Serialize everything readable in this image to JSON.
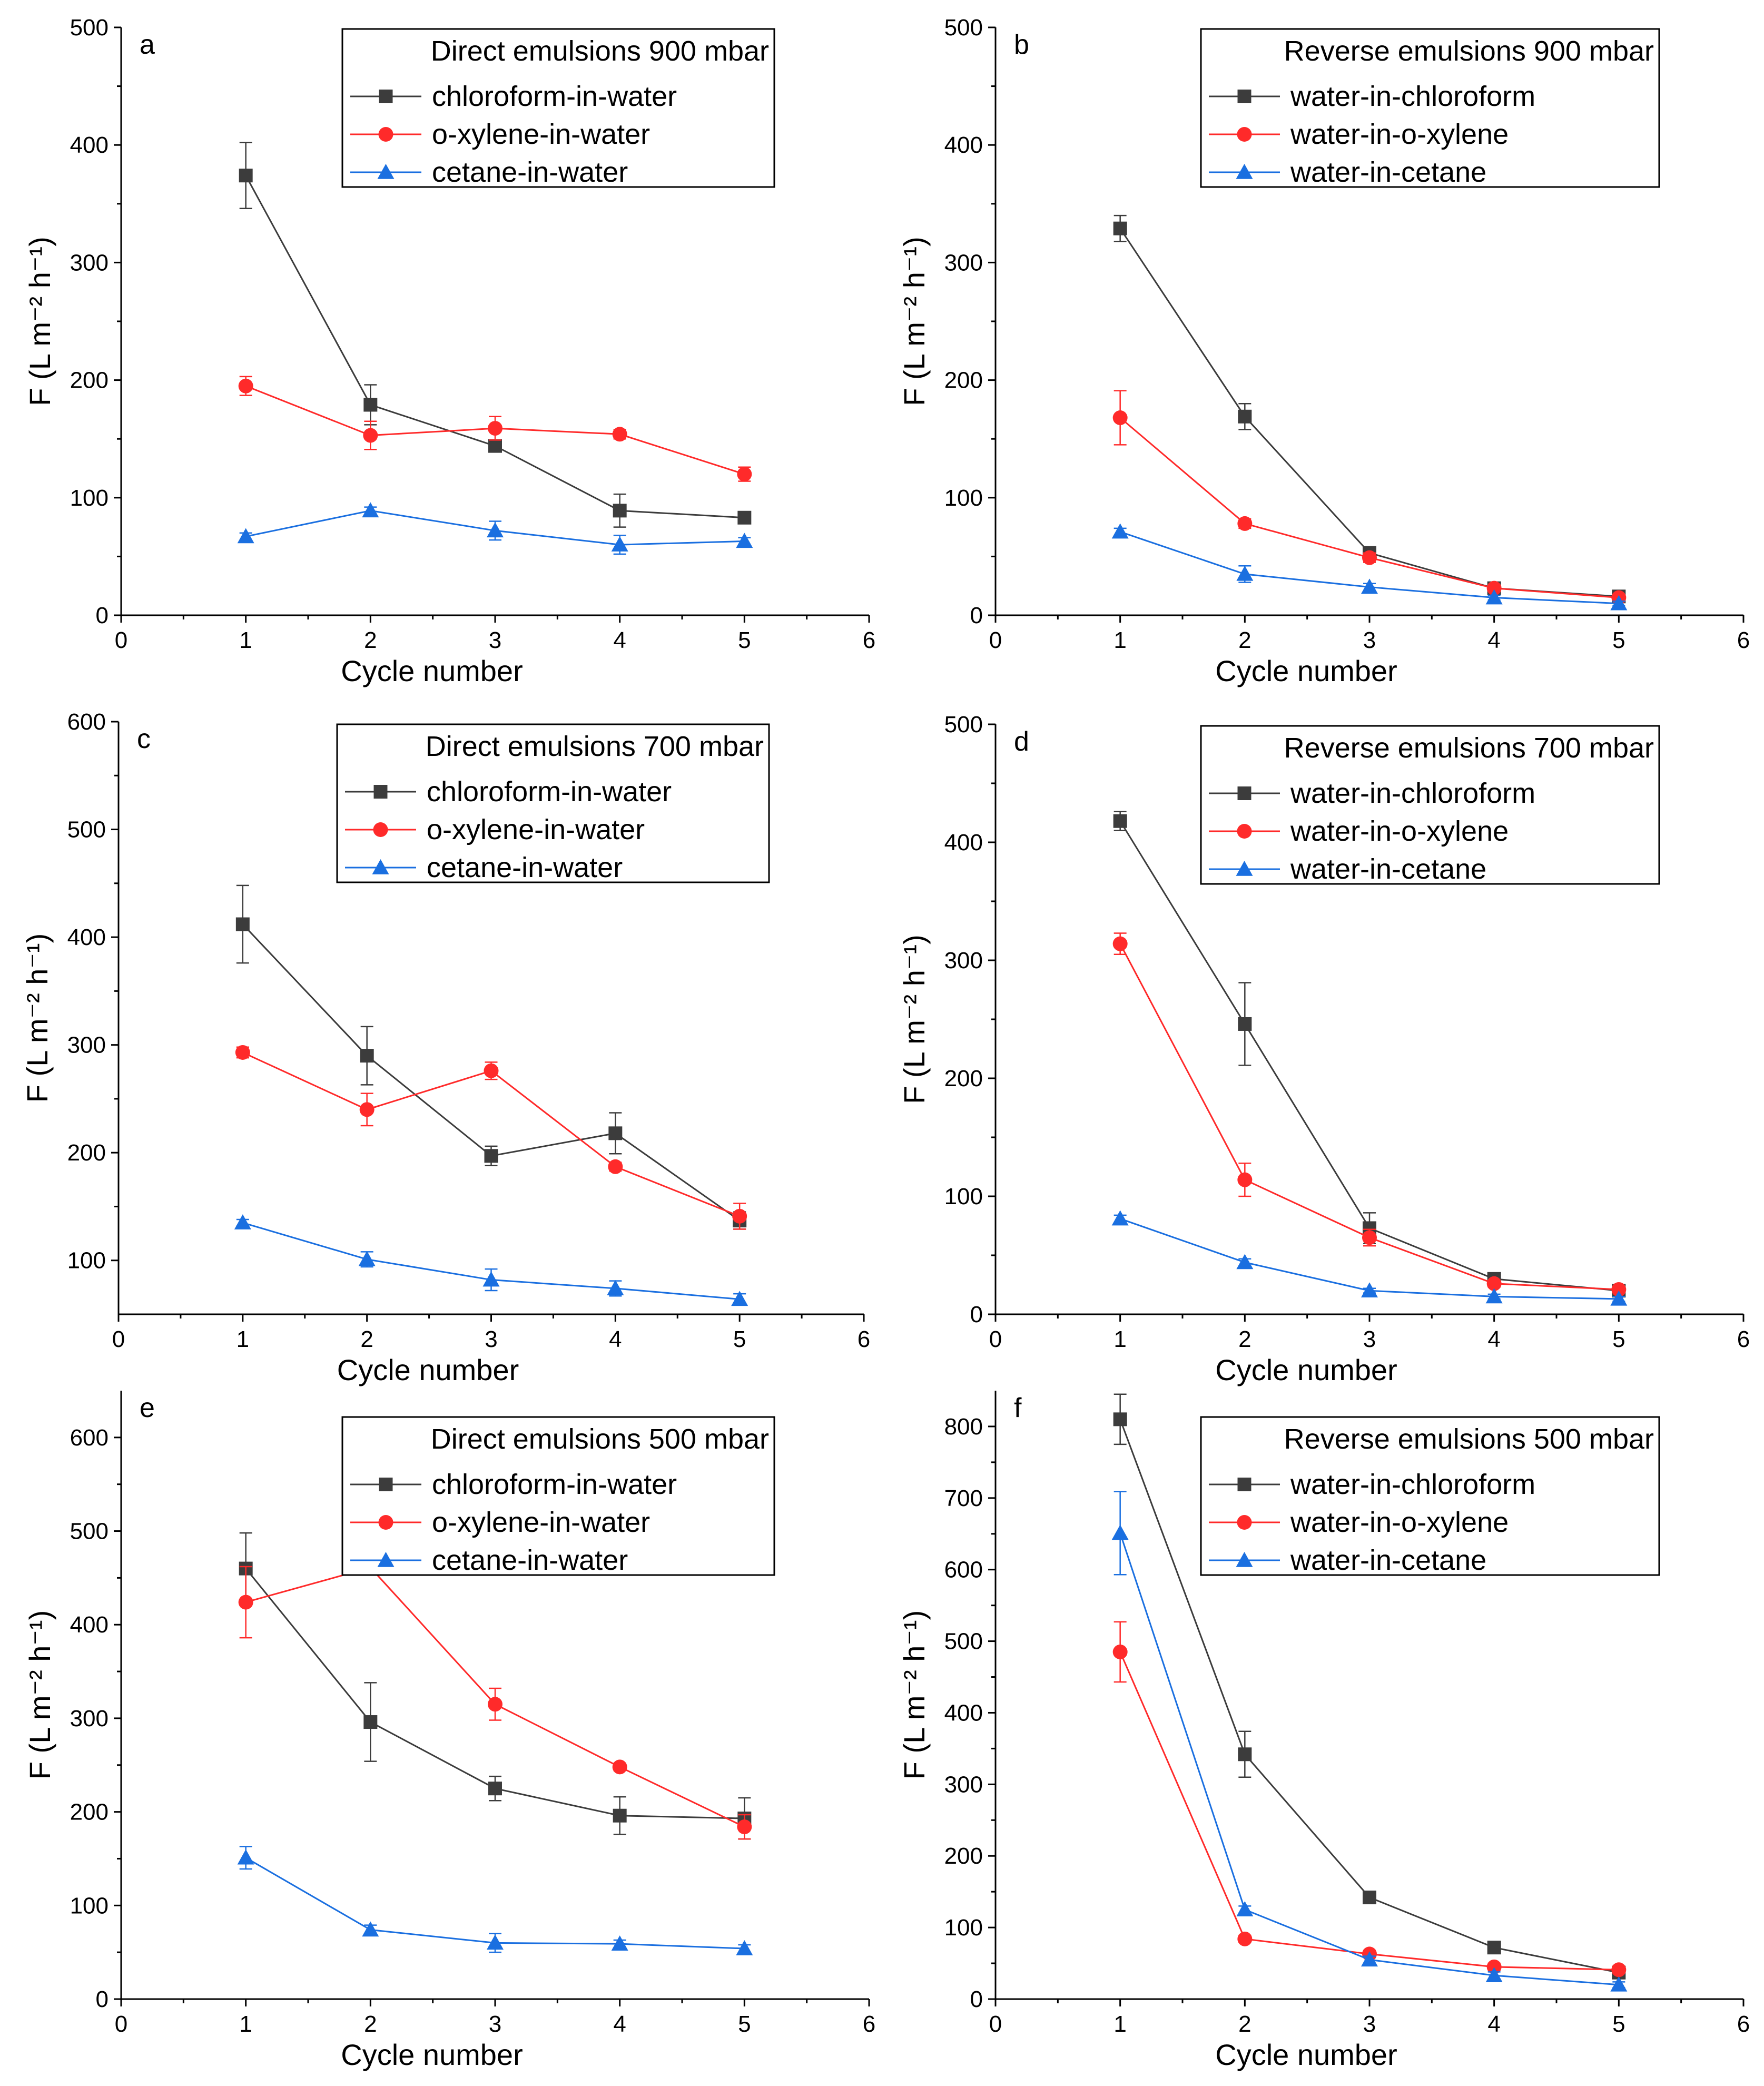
{
  "colors": {
    "chloroform": "#3c3c3c",
    "xylene": "#ff2a2a",
    "cetane": "#1a6fe0"
  },
  "chart_data": [
    {
      "type": "line",
      "panel": "a",
      "legend_title": "Direct emulsions 900 mbar",
      "xlabel": "Cycle number",
      "ylabel": "F (L m⁻² h⁻¹)",
      "xlim": [
        0,
        6
      ],
      "ylim": [
        0,
        500
      ],
      "xticks": [
        0,
        1,
        2,
        3,
        4,
        5,
        6
      ],
      "yticks": [
        0,
        100,
        200,
        300,
        400,
        500
      ],
      "x": [
        1,
        2,
        3,
        4,
        5
      ],
      "series": [
        {
          "name": "chloroform-in-water",
          "marker": "square",
          "color": "#3c3c3c",
          "values": [
            374,
            179,
            144,
            89,
            83
          ],
          "errors": [
            28,
            17,
            5,
            14,
            5
          ]
        },
        {
          "name": "o-xylene-in-water",
          "marker": "circle",
          "color": "#ff2a2a",
          "values": [
            195,
            153,
            159,
            154,
            120
          ],
          "errors": [
            8,
            12,
            10,
            4,
            6
          ]
        },
        {
          "name": "cetane-in-water",
          "marker": "triangle",
          "color": "#1a6fe0",
          "values": [
            67,
            89,
            72,
            60,
            63
          ],
          "errors": [
            3,
            3,
            8,
            8,
            3
          ]
        }
      ]
    },
    {
      "type": "line",
      "panel": "b",
      "legend_title": "Reverse emulsions 900 mbar",
      "xlabel": "Cycle number",
      "ylabel": "F (L m⁻² h⁻¹)",
      "xlim": [
        0,
        6
      ],
      "ylim": [
        0,
        500
      ],
      "xticks": [
        0,
        1,
        2,
        3,
        4,
        5,
        6
      ],
      "yticks": [
        0,
        100,
        200,
        300,
        400,
        500
      ],
      "x": [
        1,
        2,
        3,
        4,
        5
      ],
      "series": [
        {
          "name": "water-in-chloroform",
          "marker": "square",
          "color": "#3c3c3c",
          "values": [
            329,
            169,
            53,
            23,
            16
          ],
          "errors": [
            11,
            11,
            3,
            2,
            2
          ]
        },
        {
          "name": "water-in-o-xylene",
          "marker": "circle",
          "color": "#ff2a2a",
          "values": [
            168,
            78,
            49,
            23,
            15
          ],
          "errors": [
            23,
            4,
            4,
            2,
            2
          ]
        },
        {
          "name": "water-in-cetane",
          "marker": "triangle",
          "color": "#1a6fe0",
          "values": [
            71,
            35,
            24,
            15,
            10
          ],
          "errors": [
            3,
            7,
            3,
            2,
            2
          ]
        }
      ]
    },
    {
      "type": "line",
      "panel": "c",
      "legend_title": "Direct emulsions 700 mbar",
      "xlabel": "Cycle number",
      "ylabel": "F (L m⁻² h⁻¹)",
      "xlim": [
        0,
        6
      ],
      "ylim": [
        50,
        600
      ],
      "xticks": [
        0,
        1,
        2,
        3,
        4,
        5,
        6
      ],
      "yticks": [
        100,
        200,
        300,
        400,
        500,
        600
      ],
      "x": [
        1,
        2,
        3,
        4,
        5
      ],
      "series": [
        {
          "name": "chloroform-in-water",
          "marker": "square",
          "color": "#3c3c3c",
          "values": [
            412,
            290,
            197,
            218,
            137
          ],
          "errors": [
            36,
            27,
            9,
            19,
            8
          ]
        },
        {
          "name": "o-xylene-in-water",
          "marker": "circle",
          "color": "#ff2a2a",
          "values": [
            293,
            240,
            276,
            187,
            141
          ],
          "errors": [
            5,
            15,
            8,
            4,
            12
          ]
        },
        {
          "name": "cetane-in-water",
          "marker": "triangle",
          "color": "#1a6fe0",
          "values": [
            135,
            101,
            82,
            74,
            64
          ],
          "errors": [
            3,
            7,
            10,
            7,
            5
          ]
        }
      ]
    },
    {
      "type": "line",
      "panel": "d",
      "legend_title": "Reverse emulsions 700 mbar",
      "xlabel": "Cycle number",
      "ylabel": "F (L m⁻² h⁻¹)",
      "xlim": [
        0,
        6
      ],
      "ylim": [
        0,
        500
      ],
      "xticks": [
        0,
        1,
        2,
        3,
        4,
        5,
        6
      ],
      "yticks": [
        0,
        100,
        200,
        300,
        400,
        500
      ],
      "x": [
        1,
        2,
        3,
        4,
        5
      ],
      "series": [
        {
          "name": "water-in-chloroform",
          "marker": "square",
          "color": "#3c3c3c",
          "values": [
            418,
            246,
            73,
            30,
            20
          ],
          "errors": [
            8,
            35,
            13,
            3,
            2
          ]
        },
        {
          "name": "water-in-o-xylene",
          "marker": "circle",
          "color": "#ff2a2a",
          "values": [
            314,
            114,
            65,
            26,
            21
          ],
          "errors": [
            9,
            14,
            7,
            3,
            2
          ]
        },
        {
          "name": "water-in-cetane",
          "marker": "triangle",
          "color": "#1a6fe0",
          "values": [
            81,
            44,
            20,
            15,
            13
          ],
          "errors": [
            3,
            3,
            2,
            2,
            2
          ]
        }
      ]
    },
    {
      "type": "line",
      "panel": "e",
      "legend_title": "Direct emulsions 500 mbar",
      "xlabel": "Cycle number",
      "ylabel": "F (L m⁻² h⁻¹)",
      "xlim": [
        0,
        6
      ],
      "ylim": [
        0,
        650
      ],
      "xticks": [
        0,
        1,
        2,
        3,
        4,
        5,
        6
      ],
      "yticks": [
        0,
        100,
        200,
        300,
        400,
        500,
        600
      ],
      "x": [
        1,
        2,
        3,
        4,
        5
      ],
      "series": [
        {
          "name": "chloroform-in-water",
          "marker": "square",
          "color": "#3c3c3c",
          "values": [
            460,
            296,
            225,
            196,
            193
          ],
          "errors": [
            38,
            42,
            13,
            20,
            22
          ]
        },
        {
          "name": "o-xylene-in-water",
          "marker": "circle",
          "color": "#ff2a2a",
          "values": [
            424,
            461,
            315,
            248,
            184
          ],
          "errors": [
            38,
            4,
            17,
            4,
            13
          ]
        },
        {
          "name": "cetane-in-water",
          "marker": "triangle",
          "color": "#1a6fe0",
          "values": [
            151,
            74,
            60,
            59,
            54
          ],
          "errors": [
            12,
            5,
            10,
            4,
            4
          ]
        }
      ]
    },
    {
      "type": "line",
      "panel": "f",
      "legend_title": "Reverse emulsions 500 mbar",
      "xlabel": "Cycle number",
      "ylabel": "F (L m⁻² h⁻¹)",
      "xlim": [
        0,
        6
      ],
      "ylim": [
        0,
        850
      ],
      "xticks": [
        0,
        1,
        2,
        3,
        4,
        5,
        6
      ],
      "yticks": [
        0,
        100,
        200,
        300,
        400,
        500,
        600,
        700,
        800
      ],
      "x": [
        1,
        2,
        3,
        4,
        5
      ],
      "series": [
        {
          "name": "water-in-chloroform",
          "marker": "square",
          "color": "#3c3c3c",
          "values": [
            810,
            342,
            142,
            72,
            37
          ],
          "errors": [
            35,
            32,
            6,
            6,
            6
          ]
        },
        {
          "name": "water-in-o-xylene",
          "marker": "circle",
          "color": "#ff2a2a",
          "values": [
            485,
            84,
            63,
            45,
            41
          ],
          "errors": [
            42,
            5,
            5,
            5,
            5
          ]
        },
        {
          "name": "water-in-cetane",
          "marker": "triangle",
          "color": "#1a6fe0",
          "values": [
            651,
            125,
            55,
            33,
            20
          ],
          "errors": [
            58,
            5,
            5,
            5,
            4
          ]
        }
      ]
    }
  ]
}
